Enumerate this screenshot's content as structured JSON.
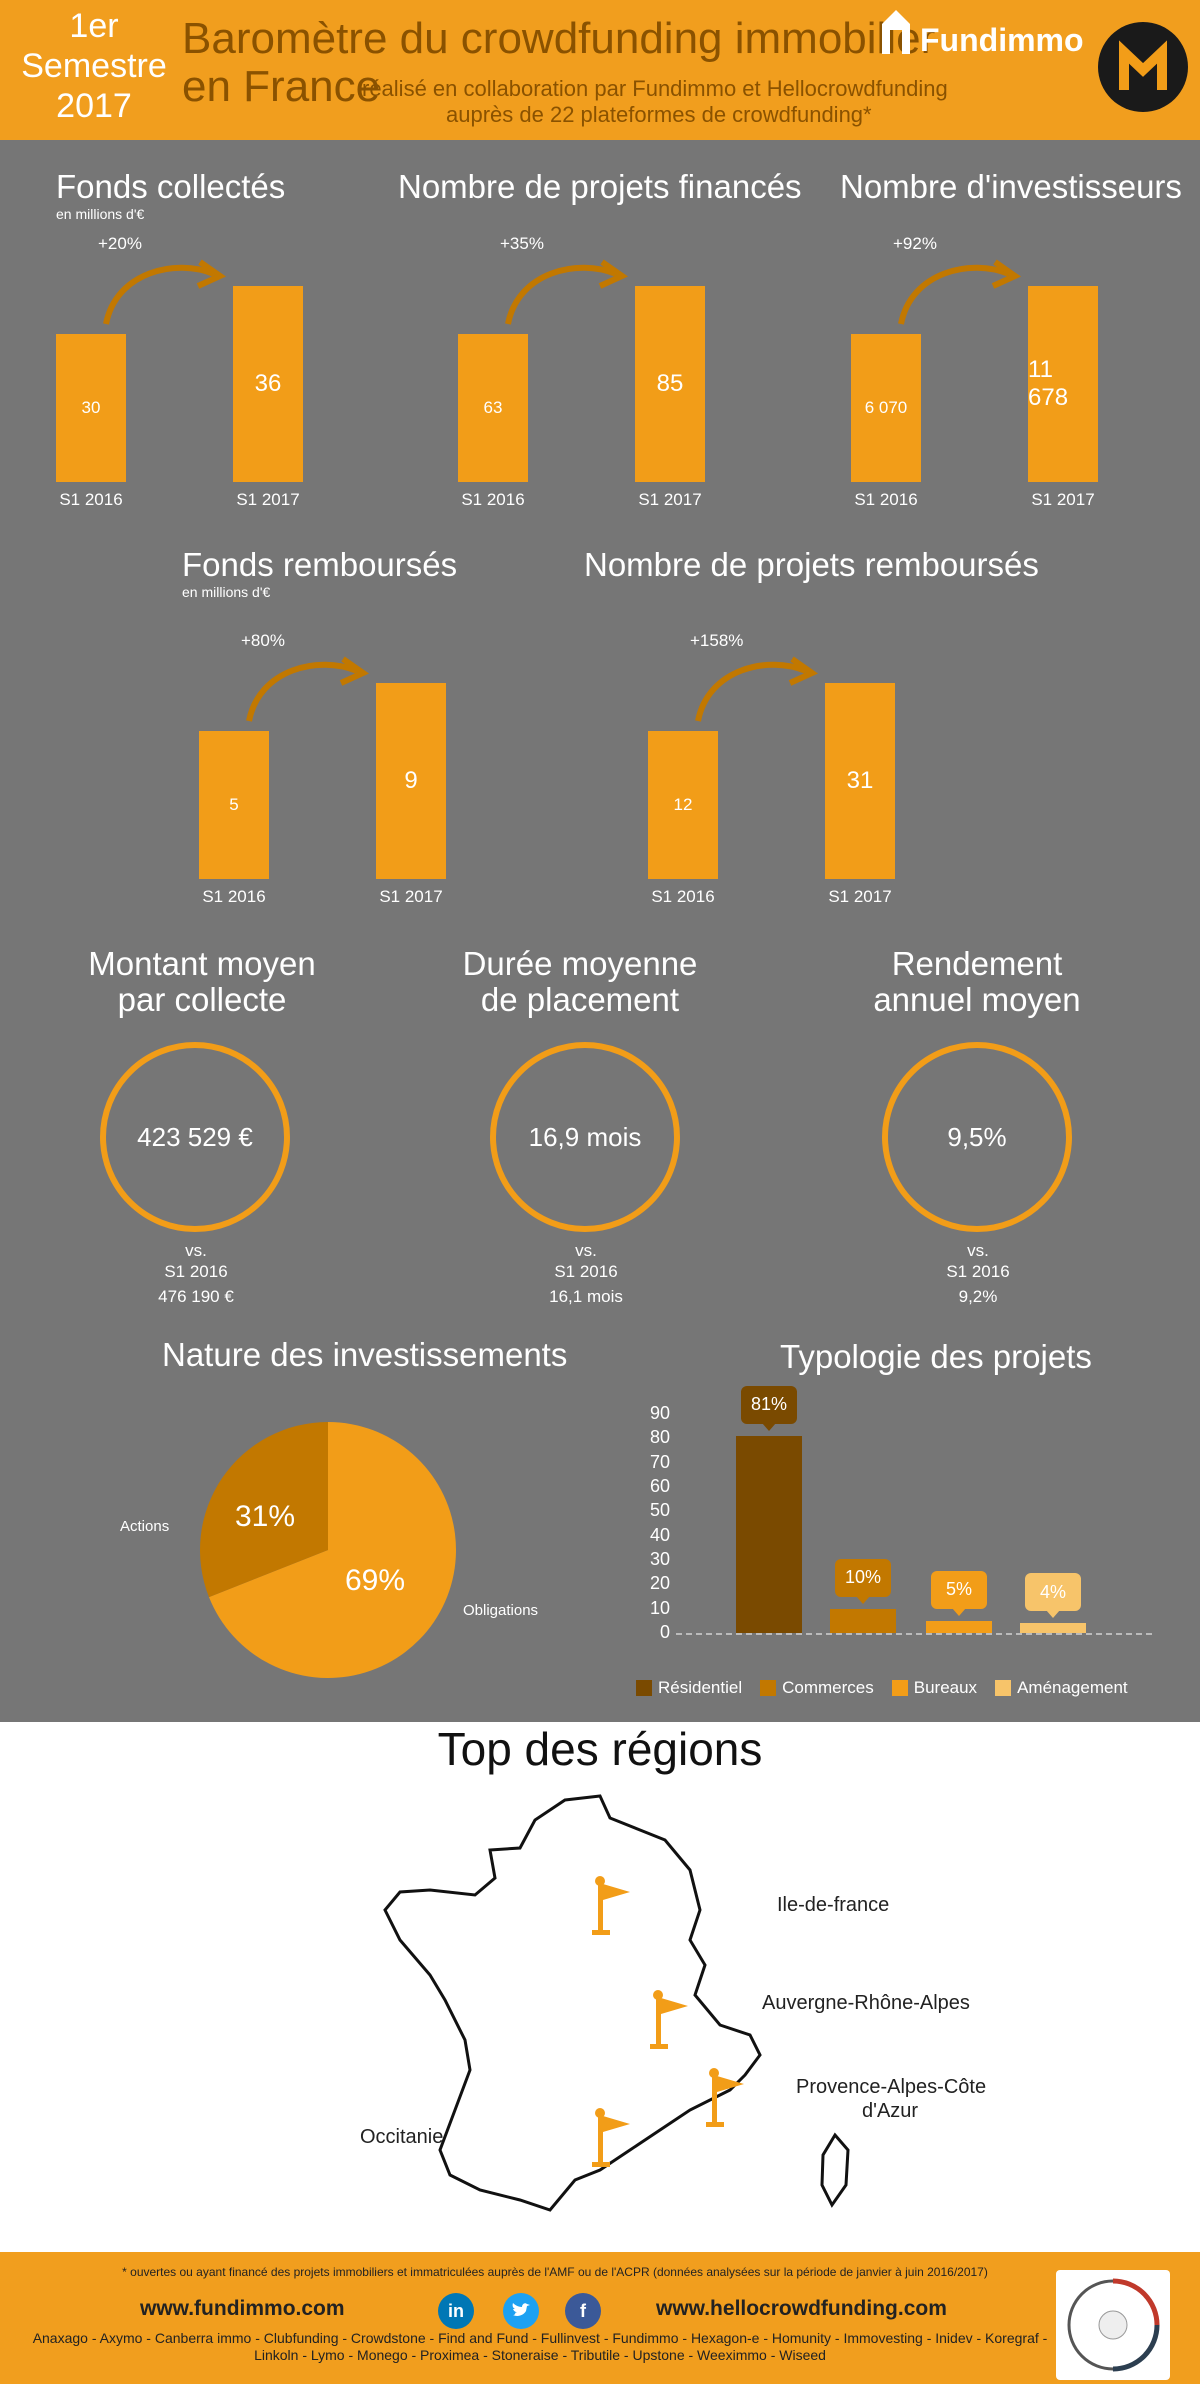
{
  "header": {
    "semester_l1": "1er",
    "semester_l2": "Semestre",
    "semester_l3": "2017",
    "title_l1": "Baromètre du crowdfunding immobilier",
    "title_l2": "en France",
    "subtitle_l1": "réalisé en collaboration par Fundimmo et Hellocrowdfunding",
    "subtitle_l2": "auprès de 22 plateformes de crowdfunding*",
    "brand": "Fundimmo"
  },
  "stats": [
    {
      "title": "Fonds collectés",
      "sub": "en millions d'€",
      "change": "+20%",
      "v2016": "30",
      "v2017": "36",
      "l2016": "S1 2016",
      "l2017": "S1 2017"
    },
    {
      "title": "Nombre de projets financés",
      "sub": "",
      "change": "+35%",
      "v2016": "63",
      "v2017": "85",
      "l2016": "S1 2016",
      "l2017": "S1 2017"
    },
    {
      "title": "Nombre d'investisseurs",
      "sub": "",
      "change": "+92%",
      "v2016": "6 070",
      "v2017": "11 678",
      "l2016": "S1 2016",
      "l2017": "S1 2017"
    },
    {
      "title": "Fonds remboursés",
      "sub": "en millions d'€",
      "change": "+80%",
      "v2016": "5",
      "v2017": "9",
      "l2016": "S1 2016",
      "l2017": "S1 2017"
    },
    {
      "title": "Nombre de projets remboursés",
      "sub": "",
      "change": "+158%",
      "v2016": "12",
      "v2017": "31",
      "l2016": "S1 2016",
      "l2017": "S1 2017"
    }
  ],
  "averages": [
    {
      "title_l1": "Montant moyen",
      "title_l2": "par collecte",
      "value": "423 529 €",
      "vs": "vs.",
      "vs_label": "S1 2016",
      "vs_value": "476 190 €"
    },
    {
      "title_l1": "Durée moyenne",
      "title_l2": "de placement",
      "value": "16,9 mois",
      "vs": "vs.",
      "vs_label": "S1 2016",
      "vs_value": "16,1 mois"
    },
    {
      "title_l1": "Rendement",
      "title_l2": "annuel moyen",
      "value": "9,5%",
      "vs": "vs.",
      "vs_label": "S1 2016",
      "vs_value": "9,2%"
    }
  ],
  "nature": {
    "title": "Nature des investissements",
    "actions_label": "Actions",
    "actions_pct": "31%",
    "obligations_label": "Obligations",
    "obligations_pct": "69%"
  },
  "typologie": {
    "title": "Typologie des projets",
    "ticks": [
      "90",
      "80",
      "70",
      "60",
      "50",
      "40",
      "30",
      "20",
      "10",
      "0"
    ],
    "labels": [
      "81%",
      "10%",
      "5%",
      "4%"
    ],
    "legend": [
      "Résidentiel",
      "Commerces",
      "Bureaux",
      "Aménagement"
    ],
    "colors": [
      "#7a4a00",
      "#c27800",
      "#f29d18",
      "#f7c46a"
    ]
  },
  "regions": {
    "title": "Top des régions",
    "items": [
      "Ile-de-france",
      "Auvergne-Rhône-Alpes",
      "Provence-Alpes-Côte",
      "d'Azur",
      "Occitanie"
    ]
  },
  "chart_data": [
    {
      "type": "bar",
      "title": "Fonds collectés",
      "subtitle": "en millions d'€",
      "categories": [
        "S1 2016",
        "S1 2017"
      ],
      "values": [
        30,
        36
      ],
      "annotation": "+20%"
    },
    {
      "type": "bar",
      "title": "Nombre de projets financés",
      "categories": [
        "S1 2016",
        "S1 2017"
      ],
      "values": [
        63,
        85
      ],
      "annotation": "+35%"
    },
    {
      "type": "bar",
      "title": "Nombre d'investisseurs",
      "categories": [
        "S1 2016",
        "S1 2017"
      ],
      "values": [
        6070,
        11678
      ],
      "annotation": "+92%"
    },
    {
      "type": "bar",
      "title": "Fonds remboursés",
      "subtitle": "en millions d'€",
      "categories": [
        "S1 2016",
        "S1 2017"
      ],
      "values": [
        5,
        9
      ],
      "annotation": "+80%"
    },
    {
      "type": "bar",
      "title": "Nombre de projets remboursés",
      "categories": [
        "S1 2016",
        "S1 2017"
      ],
      "values": [
        12,
        31
      ],
      "annotation": "+158%"
    },
    {
      "type": "pie",
      "title": "Nature des investissements",
      "categories": [
        "Obligations",
        "Actions"
      ],
      "values": [
        69,
        31
      ]
    },
    {
      "type": "bar",
      "title": "Typologie des projets",
      "categories": [
        "Résidentiel",
        "Commerces",
        "Bureaux",
        "Aménagement"
      ],
      "values": [
        81,
        10,
        5,
        4
      ],
      "ylim": [
        0,
        90
      ],
      "grid": false,
      "legend": "bottom"
    }
  ],
  "footer": {
    "note": "* ouvertes ou ayant financé des projets immobiliers et immatriculées auprès de l'AMF ou de l'ACPR (données analysées sur la période de janvier à juin 2016/2017)",
    "site1": "www.fundimmo.com",
    "site2": "www.hellocrowdfunding.com",
    "platforms_l1": "Anaxago - Axymo - Canberra immo - Clubfunding - Crowdstone - Find and Fund - Fullinvest - Fundimmo - Hexagon-e - Homunity - Immovesting - Inidev - Koregraf -",
    "platforms_l2": "Linkoln - Lymo - Monego - Proximea - Stoneraise - Tributile - Upstone - Weeximmo - Wiseed"
  }
}
